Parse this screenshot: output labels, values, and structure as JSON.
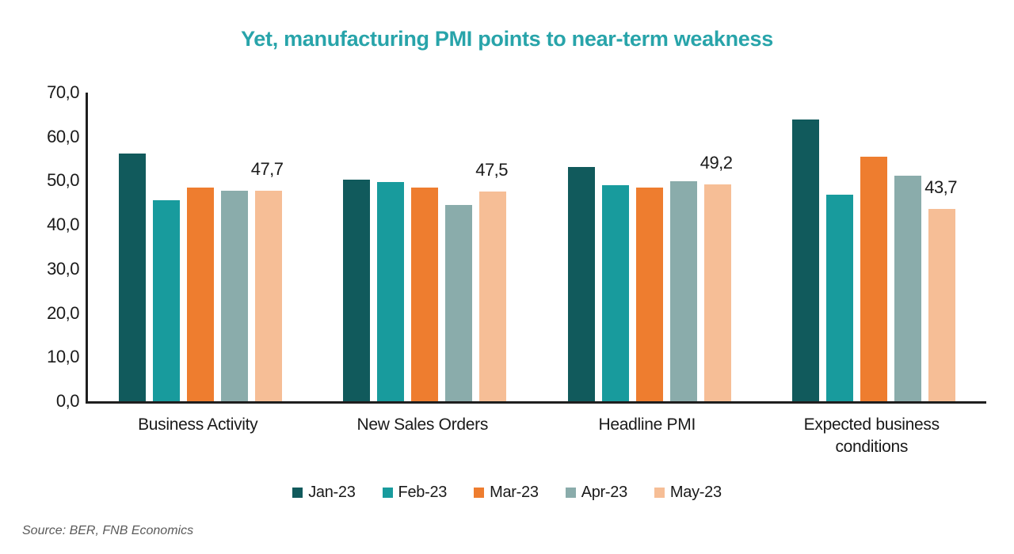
{
  "title": "Yet, manufacturing PMI points to near-term weakness",
  "title_color": "#28A4AA",
  "source": "Source: BER, FNB Economics",
  "axis_color": "#1f1f1f",
  "chart_data": {
    "type": "bar",
    "title": "Yet, manufacturing PMI points to near-term weakness",
    "categories": [
      "Business Activity",
      "New Sales Orders",
      "Headline PMI",
      "Expected business conditions"
    ],
    "series": [
      {
        "name": "Jan-23",
        "color": "#115A5C",
        "values": [
          56.2,
          50.2,
          53.1,
          63.9
        ]
      },
      {
        "name": "Feb-23",
        "color": "#189B9D",
        "values": [
          45.6,
          49.8,
          49.0,
          46.9
        ]
      },
      {
        "name": "Mar-23",
        "color": "#EE7D2F",
        "values": [
          48.4,
          48.5,
          48.4,
          55.5
        ]
      },
      {
        "name": "Apr-23",
        "color": "#8AACAB",
        "values": [
          47.7,
          44.5,
          49.9,
          51.2
        ]
      },
      {
        "name": "May-23",
        "color": "#F6BE96",
        "values": [
          47.7,
          47.5,
          49.2,
          43.7
        ],
        "data_labels": [
          "47,7",
          "47,5",
          "49,2",
          "43,7"
        ]
      }
    ],
    "xlabel": "",
    "ylabel": "",
    "ylim": [
      0,
      70
    ],
    "ytick_step": 10,
    "ytick_labels": [
      "0,0",
      "10,0",
      "20,0",
      "30,0",
      "40,0",
      "50,0",
      "60,0",
      "70,0"
    ],
    "grid": false,
    "legend_position": "bottom",
    "decimal_separator": ","
  }
}
